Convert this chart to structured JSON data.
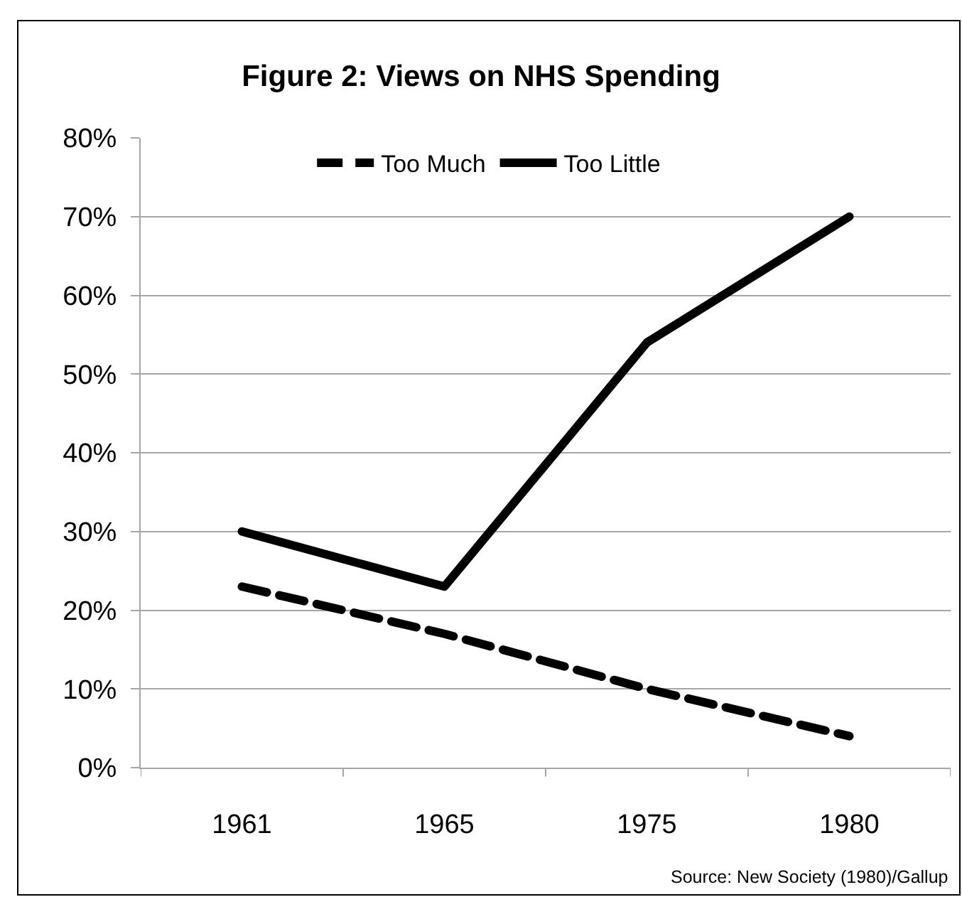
{
  "chart_data": {
    "type": "line",
    "title": "Figure 2: Views on NHS Spending",
    "categories": [
      "1961",
      "1965",
      "1975",
      "1980"
    ],
    "series": [
      {
        "name": "Too Much",
        "color": "#000000",
        "values": [
          23,
          17,
          10,
          4
        ],
        "line_style": "dashed"
      },
      {
        "name": "Too Little",
        "color": "#000000",
        "values": [
          30,
          23,
          54,
          70
        ],
        "line_style": "solid"
      }
    ],
    "ylim": [
      0,
      80
    ],
    "yticks": [
      {
        "value": 0,
        "label": "0%"
      },
      {
        "value": 10,
        "label": "10%"
      },
      {
        "value": 20,
        "label": "20%"
      },
      {
        "value": 30,
        "label": "30%"
      },
      {
        "value": 40,
        "label": "40%"
      },
      {
        "value": 50,
        "label": "50%"
      },
      {
        "value": 60,
        "label": "60%"
      },
      {
        "value": 70,
        "label": "70%"
      },
      {
        "value": 80,
        "label": "80%"
      }
    ],
    "grid": "y",
    "legend": "top",
    "annotations": [
      "Source: New Society (1980)/Gallup"
    ]
  }
}
